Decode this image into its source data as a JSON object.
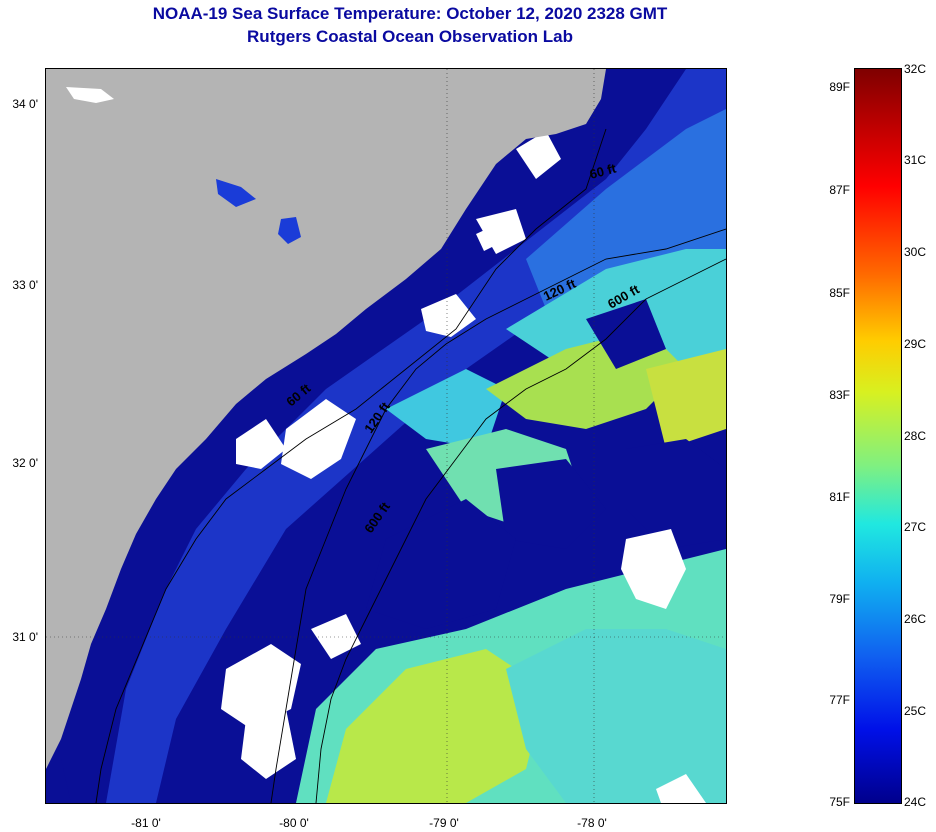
{
  "title": "NOAA-19 Sea Surface Temperature:  October 12, 2020 2328 GMT",
  "subtitle": "Rutgers Coastal Ocean Observation Lab",
  "lat_labels": [
    "34 0'",
    "33 0'",
    "32 0'",
    "31 0'"
  ],
  "lon_labels": [
    "-81 0'",
    "-80 0'",
    "-79 0'",
    "-78 0'"
  ],
  "isobaths": {
    "shallow": "60 ft",
    "mid": "120 ft",
    "deep": "600 ft"
  },
  "colorbar": {
    "fahrenheit": [
      "89F",
      "87F",
      "85F",
      "83F",
      "81F",
      "79F",
      "77F",
      "75F"
    ],
    "celsius": [
      "32C",
      "31C",
      "30C",
      "29C",
      "28C",
      "27C",
      "26C",
      "25C",
      "24C"
    ],
    "range_c": [
      24,
      32
    ]
  },
  "colors": {
    "land": "#b4b4b4",
    "cloud": "#ffffff",
    "cold_water": "#0a0f96",
    "cool_water": "#1a3cd8",
    "mid_water": "#3aa0e8",
    "warm_water": "#5ae0c8",
    "warmer_water": "#b8e84a",
    "title_text": "#0a0aa0"
  }
}
